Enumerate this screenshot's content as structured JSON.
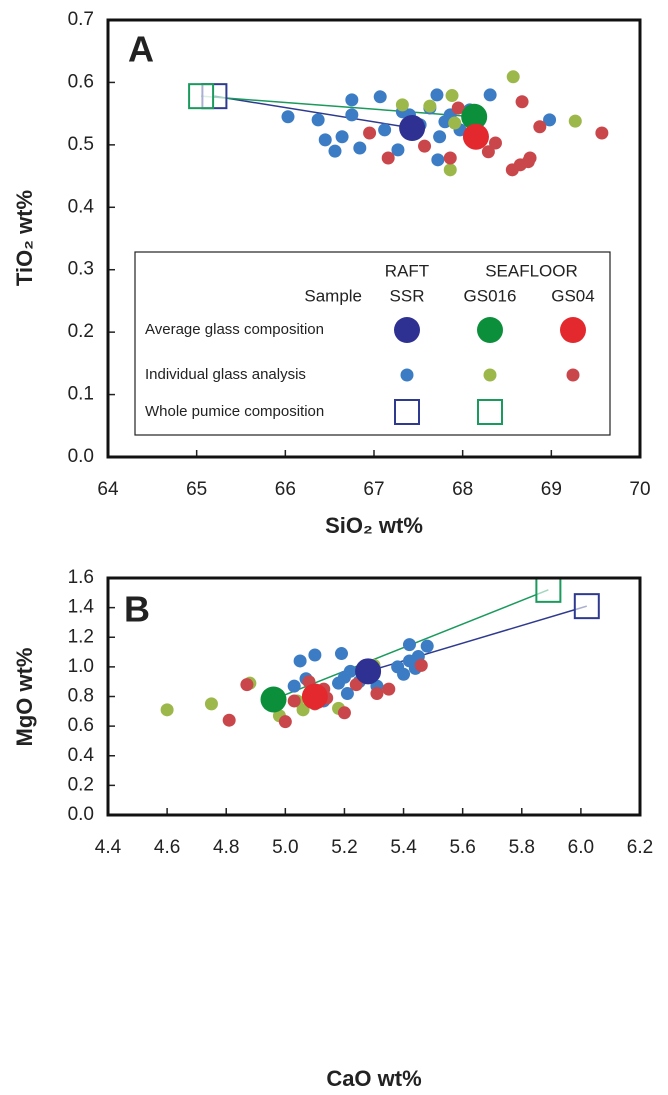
{
  "chart_data": [
    {
      "type": "scatter",
      "panel_label": "A",
      "xlabel": "SiO₂ wt%",
      "ylabel": "TiO₂ wt%",
      "xlim": [
        64,
        70
      ],
      "xticks": [
        64,
        65,
        66,
        67,
        68,
        69,
        70
      ],
      "ylim": [
        0,
        0.7
      ],
      "yticks": [
        {
          "value": 0,
          "label": "0.0"
        },
        0.1,
        0.2,
        0.3,
        0.4,
        0.5,
        0.6,
        0.7
      ],
      "individual": [
        {
          "x": [
            66.03,
            66.37,
            66.45,
            66.56,
            66.64,
            66.75,
            66.75,
            66.84,
            67.07,
            67.12,
            67.27,
            67.4,
            67.52,
            67.63,
            67.71,
            67.74,
            67.72,
            67.86,
            67.97,
            68.31,
            68.98,
            68.08,
            67.8,
            67.32
          ],
          "values": [
            0.545,
            0.54,
            0.508,
            0.49,
            0.513,
            0.572,
            0.548,
            0.495,
            0.577,
            0.524,
            0.492,
            0.548,
            0.532,
            0.559,
            0.58,
            0.513,
            0.476,
            0.548,
            0.524,
            0.58,
            0.54,
            0.556,
            0.537,
            0.553
          ]
        },
        {
          "x": [
            68.57,
            69.27,
            67.88,
            67.86,
            67.63,
            67.32,
            67.91
          ],
          "values": [
            0.609,
            0.538,
            0.579,
            0.46,
            0.562,
            0.564,
            0.535
          ]
        },
        {
          "x": [
            69.57,
            68.67,
            68.87,
            68.76,
            68.74,
            68.56,
            68.65,
            68.29,
            68.37,
            67.95,
            67.57,
            67.16,
            66.95,
            67.86,
            68.08
          ],
          "values": [
            0.519,
            0.569,
            0.529,
            0.479,
            0.473,
            0.46,
            0.468,
            0.489,
            0.503,
            0.559,
            0.498,
            0.479,
            0.519,
            0.479,
            0.511
          ]
        }
      ],
      "average": {
        "x": [
          67.43,
          68.13,
          68.15
        ],
        "values": [
          0.527,
          0.545,
          0.513
        ]
      },
      "whole": {
        "x": [
          65.2,
          65.05
        ],
        "values": [
          0.578,
          0.578
        ]
      },
      "legend": {
        "sample": "Sample",
        "groups": [
          {
            "label": "RAFT",
            "columns": [
              "SSR"
            ]
          },
          {
            "label": "SEAFLOOR",
            "columns": [
              "GS016",
              "GS04"
            ]
          }
        ],
        "rows": [
          "Average glass composition",
          "Individual glass analysis",
          "Whole pumice composition"
        ]
      }
    },
    {
      "type": "scatter",
      "panel_label": "B",
      "xlabel": "CaO wt%",
      "ylabel": "MgO wt%",
      "xlim": [
        4.4,
        6.2
      ],
      "xticks": [
        4.4,
        4.6,
        4.8,
        {
          "value": 5,
          "label": "5.0"
        },
        5.2,
        5.4,
        5.6,
        5.8,
        {
          "value": 6,
          "label": "6.0"
        },
        6.2
      ],
      "ylim": [
        0,
        1.6
      ],
      "yticks": [
        {
          "value": 0,
          "label": "0.0"
        },
        0.2,
        0.4,
        0.6,
        0.8,
        {
          "value": 1,
          "label": "1.0"
        },
        1.2,
        1.4,
        1.6
      ],
      "individual": [
        {
          "x": [
            5.05,
            5.1,
            5.03,
            5.07,
            5.19,
            5.2,
            5.22,
            5.21,
            5.25,
            5.3,
            5.31,
            5.38,
            5.4,
            5.42,
            5.45,
            5.48,
            5.44,
            5.42,
            5.18,
            5.13,
            5.3
          ],
          "values": [
            1.04,
            1.08,
            0.87,
            0.92,
            1.09,
            0.93,
            0.97,
            0.82,
            0.9,
            1.0,
            0.87,
            1.0,
            0.95,
            1.15,
            1.07,
            1.14,
            0.99,
            1.04,
            0.89,
            0.77,
            0.95
          ]
        },
        {
          "x": [
            4.6,
            4.75,
            4.88,
            4.98,
            5.06,
            5.18,
            5.3,
            5.04
          ],
          "values": [
            0.71,
            0.75,
            0.89,
            0.67,
            0.71,
            0.72,
            1.01,
            0.77
          ]
        },
        {
          "x": [
            4.81,
            4.87,
            5.0,
            5.03,
            5.1,
            5.14,
            5.2,
            5.24,
            5.31,
            5.35,
            5.46,
            5.13,
            5.08,
            5.27
          ],
          "values": [
            0.64,
            0.88,
            0.63,
            0.77,
            0.75,
            0.79,
            0.69,
            0.88,
            0.82,
            0.85,
            1.01,
            0.85,
            0.9,
            0.93
          ]
        }
      ],
      "average": {
        "x": [
          5.28,
          4.96,
          5.1
        ],
        "values": [
          0.97,
          0.78,
          0.8
        ]
      },
      "whole": {
        "x": [
          6.02,
          5.89
        ],
        "values": [
          1.41,
          1.52
        ]
      }
    }
  ],
  "colors": {
    "individual": [
      "#3b7cc4",
      "#9cb84b",
      "#c9474b"
    ],
    "average": [
      "#2e3192",
      "#0b8f3b",
      "#e3292e"
    ],
    "whole": [
      "#2e3a8f",
      "#1a9a5c"
    ]
  }
}
